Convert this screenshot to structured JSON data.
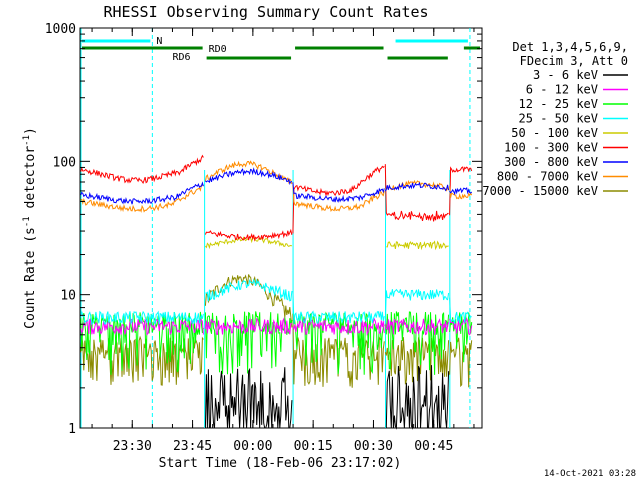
{
  "chart_data": {
    "type": "line",
    "title": "RHESSI Observing Summary Count Rates",
    "xlabel": "Start Time (18-Feb-06 23:17:02)",
    "ylabel_main": "Count Rate (s",
    "ylabel_sup1": "-1",
    "ylabel_mid": " detector",
    "ylabel_sup2": "-1",
    "ylabel_end": ")",
    "yscale": "log",
    "ylim": [
      1,
      1000
    ],
    "x_unit": "minutes after 23:17:02",
    "xlim": [
      0,
      100
    ],
    "x_ticks": [
      {
        "label": "23:30",
        "t": 13
      },
      {
        "label": "23:45",
        "t": 28
      },
      {
        "label": "00:00",
        "t": 43
      },
      {
        "label": "00:15",
        "t": 58
      },
      {
        "label": "00:30",
        "t": 73
      },
      {
        "label": "00:45",
        "t": 88
      }
    ],
    "y_ticks": [
      {
        "label": "1",
        "v": 1
      },
      {
        "label": "10",
        "v": 10
      },
      {
        "label": "100",
        "v": 100
      },
      {
        "label": "1000",
        "v": 1000
      }
    ],
    "legend_header": [
      "Det 1,3,4,5,6,9,",
      "FDecim 3, Att 0"
    ],
    "legend_position": "right",
    "series": [
      {
        "name": "3 - 6 keV",
        "color": "#000000"
      },
      {
        "name": "6 - 12 keV",
        "color": "#ff00ff"
      },
      {
        "name": "12 - 25 keV",
        "color": "#00ff00"
      },
      {
        "name": "25 - 50 keV",
        "color": "#00ffff"
      },
      {
        "name": "50 - 100 keV",
        "color": "#cccc00"
      },
      {
        "name": "100 - 300 keV",
        "color": "#ff0000"
      },
      {
        "name": "300 - 800 keV",
        "color": "#0000ff"
      },
      {
        "name": "800 - 7000 keV",
        "color": "#ff8c00"
      },
      {
        "name": "7000 - 15000 keV",
        "color": "#8b8b00"
      }
    ],
    "flags": [
      {
        "label": "N",
        "color": "#00ffff",
        "segments": [
          [
            0,
            18
          ],
          [
            78,
            97
          ]
        ]
      },
      {
        "label": "RD0",
        "color": "#008000",
        "segments": [
          [
            0,
            31
          ],
          [
            53,
            76
          ],
          [
            95,
            100
          ]
        ]
      },
      {
        "label": "RD6",
        "color": "#008000",
        "segments": [
          [
            31,
            53
          ],
          [
            76,
            92
          ]
        ]
      }
    ],
    "night_boundaries": [
      18,
      97
    ],
    "saa_boundaries": [
      31,
      53,
      76,
      92
    ]
  },
  "timestamp": "14-Oct-2021 03:28"
}
